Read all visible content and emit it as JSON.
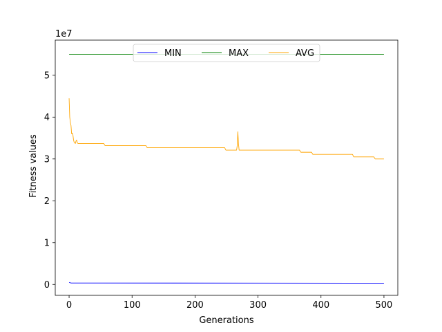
{
  "chart_data": {
    "type": "line",
    "xlabel": "Generations",
    "ylabel": "Fitness values",
    "offset_text": "1e7",
    "xlim": [
      -22,
      522
    ],
    "ylim": [
      -2600000,
      58400000
    ],
    "x_ticks": [
      0,
      100,
      200,
      300,
      400,
      500
    ],
    "x_tick_labels": [
      "0",
      "100",
      "200",
      "300",
      "400",
      "500"
    ],
    "y_ticks": [
      0,
      10000000,
      20000000,
      30000000,
      40000000,
      50000000
    ],
    "y_tick_labels": [
      "0",
      "1",
      "2",
      "3",
      "4",
      "5"
    ],
    "legend": {
      "placement": "upper center",
      "ncol": 3
    },
    "series": [
      {
        "name": "MIN",
        "color": "#0000ff",
        "points": [
          [
            0,
            500000
          ],
          [
            3,
            350000
          ],
          [
            500,
            300000
          ]
        ]
      },
      {
        "name": "MAX",
        "color": "#008000",
        "points": [
          [
            0,
            55000000
          ],
          [
            500,
            55000000
          ]
        ]
      },
      {
        "name": "AVG",
        "color": "#ffa500",
        "points": [
          [
            0,
            44500000
          ],
          [
            1,
            40000000
          ],
          [
            2,
            38700000
          ],
          [
            3,
            38000000
          ],
          [
            4,
            36000000
          ],
          [
            5,
            36200000
          ],
          [
            6,
            35800000
          ],
          [
            7,
            34600000
          ],
          [
            8,
            34000000
          ],
          [
            9,
            33800000
          ],
          [
            10,
            33700000
          ],
          [
            11,
            34300000
          ],
          [
            12,
            34500000
          ],
          [
            13,
            33900000
          ],
          [
            14,
            33700000
          ],
          [
            55,
            33700000
          ],
          [
            57,
            33200000
          ],
          [
            122,
            33200000
          ],
          [
            124,
            32700000
          ],
          [
            247,
            32700000
          ],
          [
            249,
            32100000
          ],
          [
            266,
            32100000
          ],
          [
            267,
            33200000
          ],
          [
            268,
            36500000
          ],
          [
            269,
            33600000
          ],
          [
            270,
            32100000
          ],
          [
            366,
            32100000
          ],
          [
            368,
            31600000
          ],
          [
            385,
            31600000
          ],
          [
            387,
            31100000
          ],
          [
            450,
            31100000
          ],
          [
            452,
            30500000
          ],
          [
            484,
            30500000
          ],
          [
            486,
            30000000
          ],
          [
            500,
            30000000
          ]
        ]
      }
    ]
  }
}
